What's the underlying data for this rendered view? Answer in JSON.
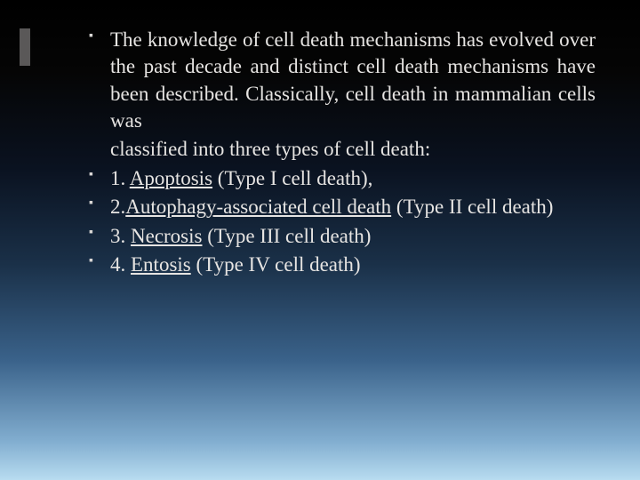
{
  "slide": {
    "background_gradient": [
      "#000000",
      "#050505",
      "#0a1220",
      "#1a3048",
      "#3a628a",
      "#82aed0",
      "#b8dcf0"
    ],
    "left_bar_color": "#5a5858",
    "text_color": "#e6e4e2",
    "font_family": "Georgia, serif",
    "body_fontsize": 23,
    "bullets": [
      {
        "plain": "The knowledge of cell death mechanisms has evolved over the past decade and distinct cell death mechanisms have been described. Classically, cell death in mammalian cells was",
        "plain_line2": "classified into three types of cell death:",
        "justify": true
      },
      {
        "prefix": "1. ",
        "underline": "Apoptosis",
        "suffix": " (Type I cell death),"
      },
      {
        "prefix": "2.",
        "underline": "Autophagy-associated cell death",
        "suffix": " (Type II cell death)"
      },
      {
        "prefix": "3. ",
        "underline": "Necrosis",
        "suffix": " (Type III cell death)"
      },
      {
        "prefix": "4. ",
        "underline": "Entosis",
        "suffix": " (Type IV cell death)"
      }
    ]
  }
}
